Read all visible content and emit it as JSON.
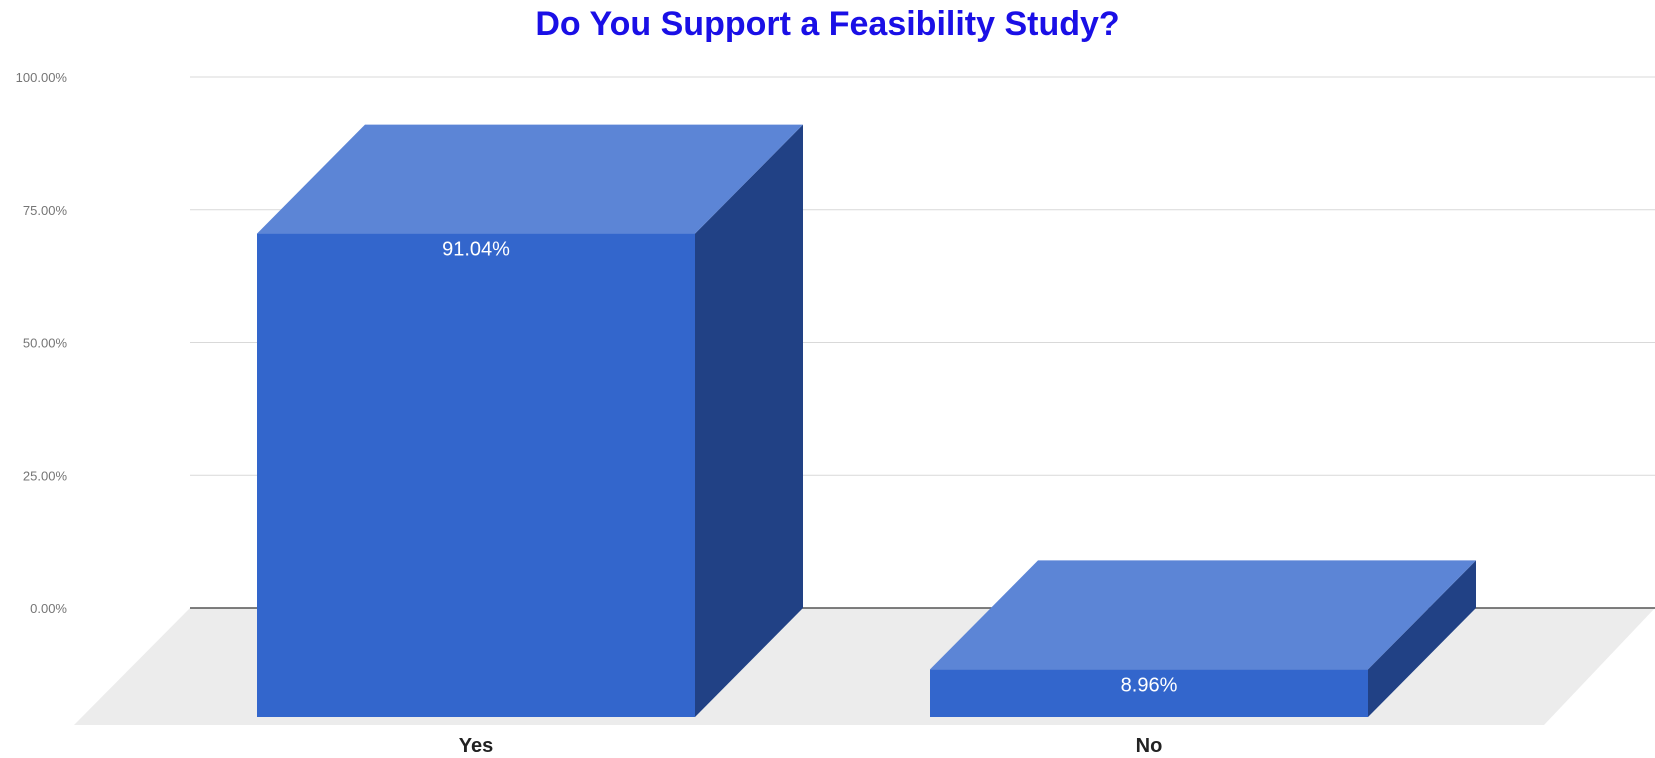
{
  "chart_data": {
    "type": "bar",
    "title": "Do You Support a Feasibility Study?",
    "xlabel": "",
    "ylabel": "",
    "categories": [
      "Yes",
      "No"
    ],
    "values": [
      91.04,
      8.96
    ],
    "data_labels": [
      "91.04%",
      "8.96%"
    ],
    "ylim": [
      0,
      100
    ],
    "yticks": [
      0,
      25,
      50,
      75,
      100
    ],
    "ytick_labels": [
      "0.00%",
      "25.00%",
      "50.00%",
      "75.00%",
      "100.00%"
    ],
    "grid": true,
    "legend": "none",
    "style": "3d",
    "colors": {
      "title": "#1a0fe6",
      "bar_front": "#3366cc",
      "bar_top": "#5c85d6",
      "bar_side": "#214185",
      "floor": "#ececec",
      "gridline": "#d9d9d9",
      "axis": "#555555",
      "data_label": "#ffffff",
      "tick_label": "#757575",
      "category_label": "#222222"
    }
  }
}
